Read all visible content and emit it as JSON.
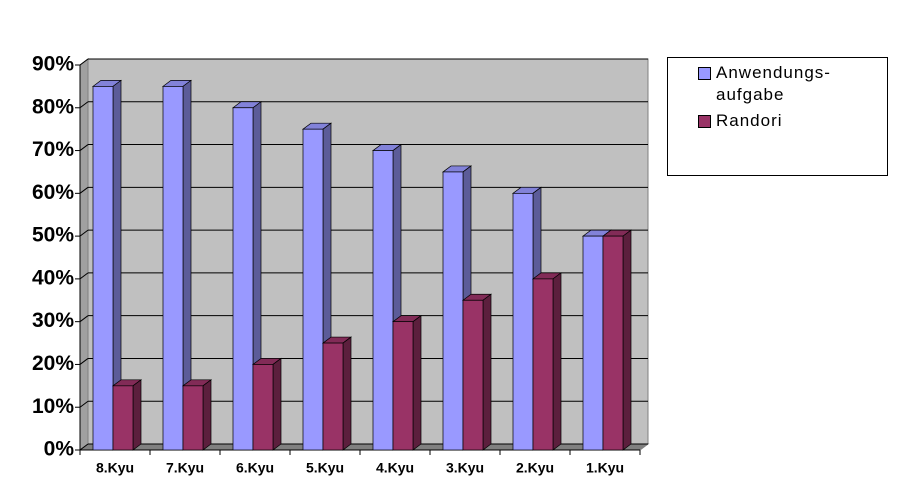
{
  "chart_data": {
    "type": "bar",
    "categories": [
      "8.Kyu",
      "7.Kyu",
      "6.Kyu",
      "5.Kyu",
      "4.Kyu",
      "3.Kyu",
      "2.Kyu",
      "1.Kyu"
    ],
    "series": [
      {
        "name": "Anwendungs-aufgabe",
        "color": "#9999ff",
        "values": [
          85,
          85,
          80,
          75,
          70,
          65,
          60,
          50
        ]
      },
      {
        "name": "Randori",
        "color": "#993366",
        "values": [
          15,
          15,
          20,
          25,
          30,
          35,
          40,
          50
        ]
      }
    ],
    "ylim": [
      0,
      90
    ],
    "yticks": [
      {
        "value": 0,
        "label": "0%"
      },
      {
        "value": 10,
        "label": "10%"
      },
      {
        "value": 20,
        "label": "20%"
      },
      {
        "value": 30,
        "label": "30%"
      },
      {
        "value": 40,
        "label": "40%"
      },
      {
        "value": 50,
        "label": "50%"
      },
      {
        "value": 60,
        "label": "60%"
      },
      {
        "value": 70,
        "label": "70%"
      },
      {
        "value": 80,
        "label": "80%"
      },
      {
        "value": 90,
        "label": "90%"
      }
    ],
    "grid": true,
    "legend": "right"
  }
}
